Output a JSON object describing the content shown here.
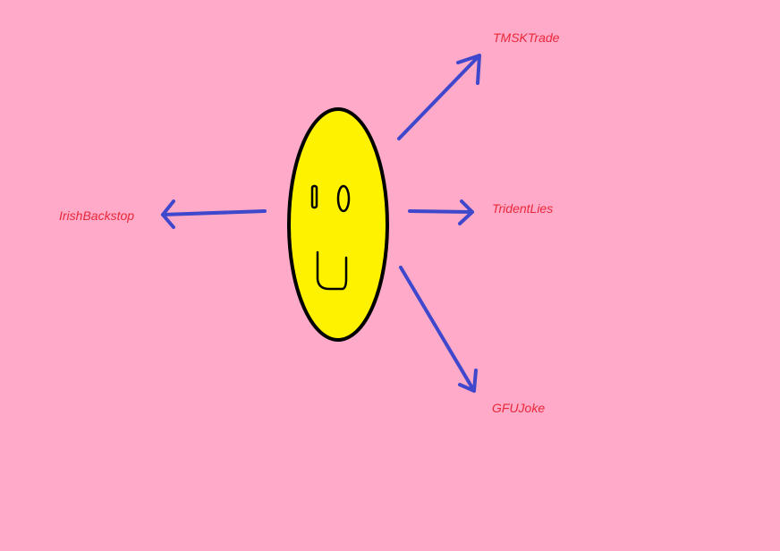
{
  "colors": {
    "background": "#ffaac8",
    "face_fill": "#fff200",
    "face_outline": "#000000",
    "arrow": "#3f48cc",
    "label_text": "#e8283a"
  },
  "center": {
    "icon": "smiley-face-icon"
  },
  "labels": {
    "top_right": "TMSKTrade",
    "right": "TridentLies",
    "left": "IrishBackstop",
    "bottom_right": "GFUJoke"
  }
}
